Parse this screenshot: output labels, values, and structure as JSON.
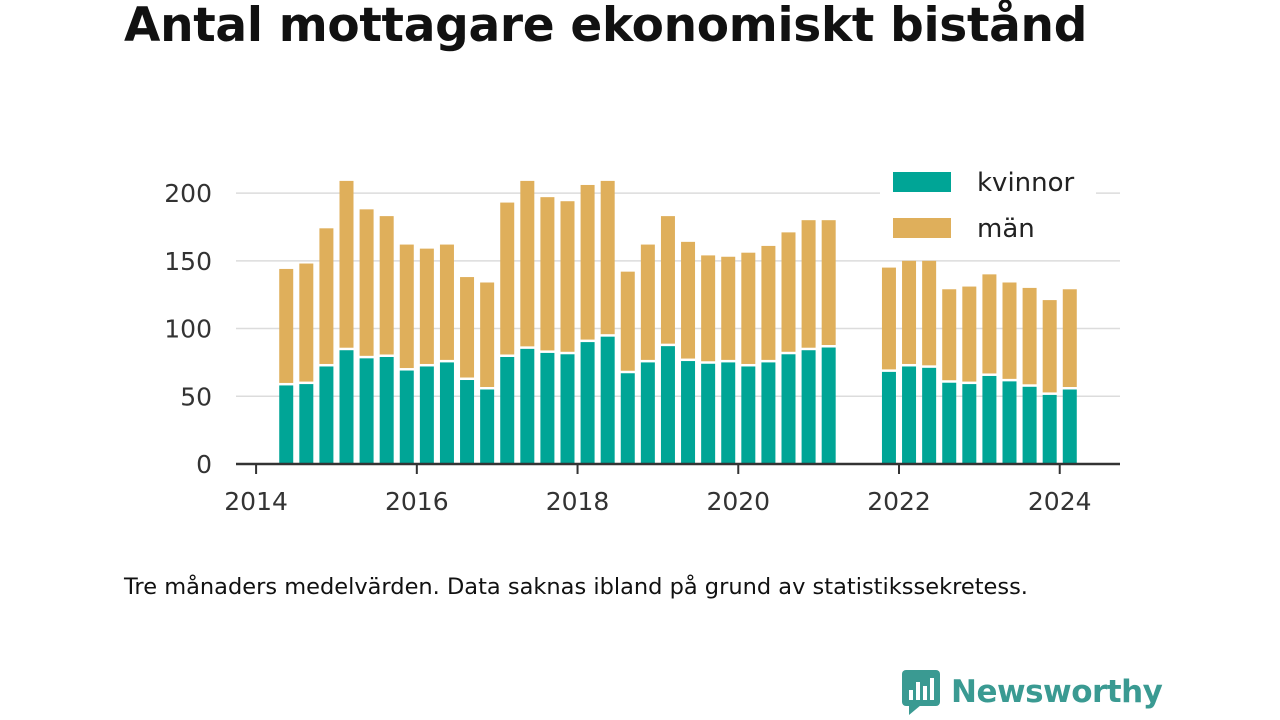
{
  "title": "Antal mottagare ekonomiskt bistånd",
  "note": "Tre månaders medelvärden. Data saknas ibland på grund av statistikssekretess.",
  "brand": {
    "name": "Newsworthy",
    "icon": "bar-chart-speech-bubble-icon",
    "color": "#3a9a92"
  },
  "chart_data": {
    "type": "bar",
    "stacked": true,
    "x_axis": {
      "min": 2013.75,
      "max": 2024.75,
      "ticks": [
        "2014",
        "2016",
        "2018",
        "2020",
        "2022",
        "2024"
      ]
    },
    "y_axis": {
      "min": 0,
      "max": 220,
      "ticks": [
        "0",
        "50",
        "100",
        "150",
        "200"
      ]
    },
    "grid": true,
    "legend_position": "top-right",
    "x": [
      2014.375,
      2014.625,
      2014.875,
      2015.125,
      2015.375,
      2015.625,
      2015.875,
      2016.125,
      2016.375,
      2016.625,
      2016.875,
      2017.125,
      2017.375,
      2017.625,
      2017.875,
      2018.125,
      2018.375,
      2018.625,
      2018.875,
      2019.125,
      2019.375,
      2019.625,
      2019.875,
      2020.125,
      2020.375,
      2020.625,
      2020.875,
      2021.125,
      2021.375,
      2021.625,
      2021.875,
      2022.125,
      2022.375,
      2022.625,
      2022.875,
      2023.125,
      2023.375,
      2023.625,
      2023.875,
      2024.125
    ],
    "series": [
      {
        "name": "kvinnor",
        "color": "#00a596",
        "values": [
          58,
          59,
          72,
          84,
          78,
          79,
          69,
          72,
          75,
          62,
          55,
          79,
          85,
          82,
          81,
          90,
          94,
          67,
          75,
          87,
          76,
          74,
          75,
          72,
          75,
          81,
          84,
          86,
          null,
          null,
          68,
          72,
          71,
          60,
          59,
          65,
          61,
          57,
          51,
          55
        ]
      },
      {
        "name": "män",
        "color": "#dfaf5b",
        "values": [
          86,
          89,
          102,
          125,
          110,
          104,
          93,
          87,
          87,
          76,
          79,
          114,
          124,
          115,
          113,
          116,
          115,
          75,
          87,
          96,
          88,
          80,
          78,
          84,
          86,
          90,
          96,
          94,
          null,
          null,
          77,
          78,
          79,
          69,
          72,
          75,
          73,
          73,
          70,
          74
        ]
      }
    ]
  }
}
